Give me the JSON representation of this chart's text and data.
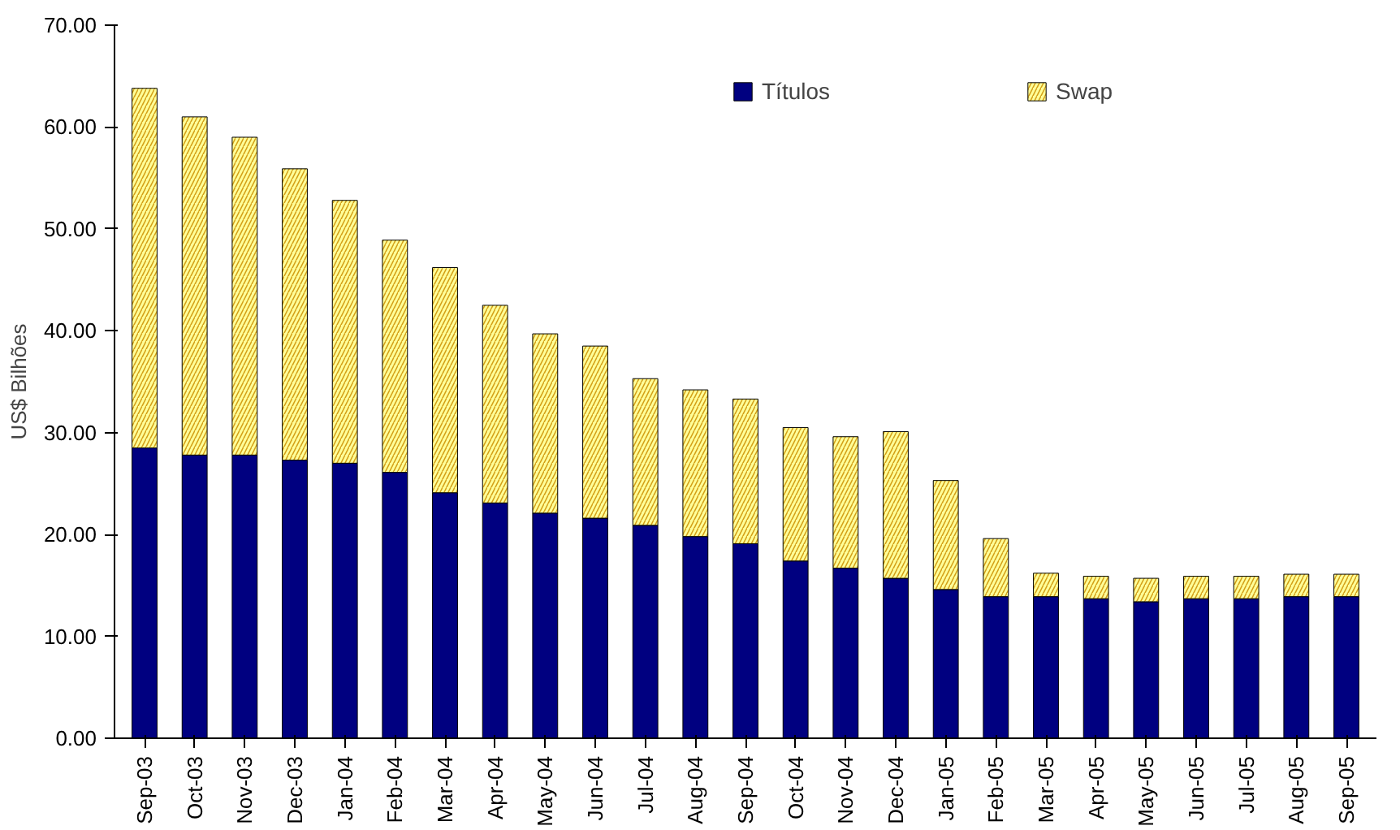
{
  "chart_data": {
    "type": "bar",
    "stacked": true,
    "ylabel": "US$ Bilhões",
    "categories": [
      "Sep-03",
      "Oct-03",
      "Nov-03",
      "Dec-03",
      "Jan-04",
      "Feb-04",
      "Mar-04",
      "Apr-04",
      "May-04",
      "Jun-04",
      "Jul-04",
      "Aug-04",
      "Sep-04",
      "Oct-04",
      "Nov-04",
      "Dec-04",
      "Jan-05",
      "Feb-05",
      "Mar-05",
      "Apr-05",
      "May-05",
      "Jun-05",
      "Jul-05",
      "Aug-05",
      "Sep-05"
    ],
    "series": [
      {
        "name": "Títulos",
        "color": "#000080",
        "values": [
          28.5,
          27.8,
          27.8,
          27.3,
          27.0,
          26.1,
          24.1,
          23.1,
          22.1,
          21.6,
          20.9,
          19.8,
          19.1,
          17.4,
          16.7,
          15.7,
          14.6,
          13.9,
          13.9,
          13.7,
          13.4,
          13.7,
          13.7,
          13.9,
          13.9
        ]
      },
      {
        "name": "Swap",
        "color": "#ffff99",
        "values": [
          35.3,
          33.2,
          31.2,
          28.6,
          25.8,
          22.8,
          22.1,
          19.4,
          17.6,
          16.9,
          14.4,
          14.4,
          14.2,
          13.1,
          12.9,
          14.4,
          10.7,
          5.7,
          2.3,
          2.2,
          2.3,
          2.2,
          2.2,
          2.2,
          2.2
        ]
      }
    ],
    "ylim": [
      0,
      70
    ],
    "yticks": [
      {
        "value": 0,
        "label": "0.00"
      },
      {
        "value": 10,
        "label": "10.00"
      },
      {
        "value": 20,
        "label": "20.00"
      },
      {
        "value": 30,
        "label": "30.00"
      },
      {
        "value": 40,
        "label": "40.00"
      },
      {
        "value": 50,
        "label": "50.00"
      },
      {
        "value": 60,
        "label": "60.00"
      },
      {
        "value": 70,
        "label": "70.00"
      }
    ],
    "grid": false,
    "legend": "top"
  }
}
